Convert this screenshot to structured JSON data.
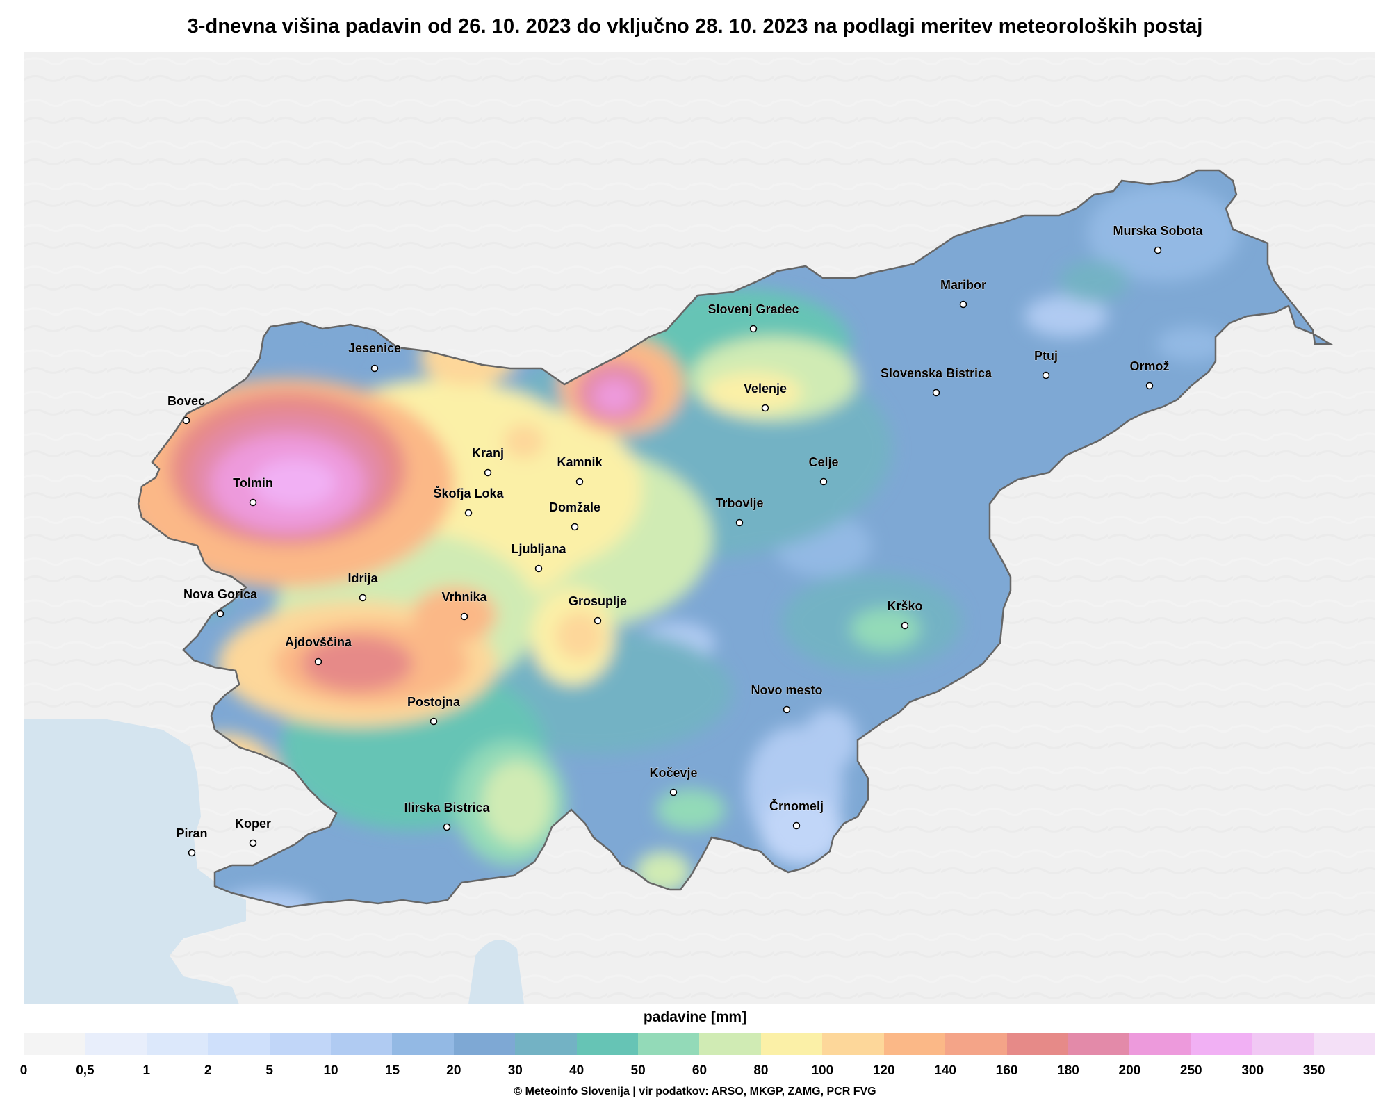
{
  "title": "3-dnevna višina padavin od 26. 10. 2023 do vključno 28. 10. 2023 na podlagi meritev meteoroloških postaj",
  "legend": {
    "title": "padavine [mm]",
    "ticks": [
      "0",
      "0,5",
      "1",
      "2",
      "5",
      "10",
      "15",
      "20",
      "30",
      "40",
      "50",
      "60",
      "80",
      "100",
      "120",
      "140",
      "160",
      "180",
      "200",
      "250",
      "300",
      "350"
    ],
    "colors": [
      "#f4f4f4",
      "#e8eefb",
      "#dce8fb",
      "#cfe0fb",
      "#c1d6f8",
      "#b0cbf2",
      "#93b9e4",
      "#7ea8d4",
      "#73b2c4",
      "#66c4b5",
      "#93dab8",
      "#d0ebb4",
      "#fbf0a7",
      "#fdd79a",
      "#fbb887",
      "#f4a488",
      "#e68a88",
      "#e38aa9",
      "#ed9adc",
      "#f1b0f4",
      "#f1c8f4",
      "#f4e0f7"
    ]
  },
  "credit": "© Meteoinfo Slovenija  |  vir podatkov: ARSO, MKGP, ZAMG, PCR FVG",
  "cities": [
    {
      "name": "Jesenice"
    },
    {
      "name": "Bovec"
    },
    {
      "name": "Tolmin"
    },
    {
      "name": "Kranj"
    },
    {
      "name": "Kamnik"
    },
    {
      "name": "Škofja Loka"
    },
    {
      "name": "Domžale"
    },
    {
      "name": "Ljubljana"
    },
    {
      "name": "Idrija"
    },
    {
      "name": "Nova Gorica"
    },
    {
      "name": "Vrhnika"
    },
    {
      "name": "Grosuplje"
    },
    {
      "name": "Ajdovščina"
    },
    {
      "name": "Postojna"
    },
    {
      "name": "Ilirska Bistrica"
    },
    {
      "name": "Koper"
    },
    {
      "name": "Piran"
    },
    {
      "name": "Kočevje"
    },
    {
      "name": "Črnomelj"
    },
    {
      "name": "Novo mesto"
    },
    {
      "name": "Krško"
    },
    {
      "name": "Trbovlje"
    },
    {
      "name": "Celje"
    },
    {
      "name": "Velenje"
    },
    {
      "name": "Slovenj Gradec"
    },
    {
      "name": "Maribor"
    },
    {
      "name": "Slovenska Bistrica"
    },
    {
      "name": "Ptuj"
    },
    {
      "name": "Ormož"
    },
    {
      "name": "Murska Sobota"
    }
  ]
}
